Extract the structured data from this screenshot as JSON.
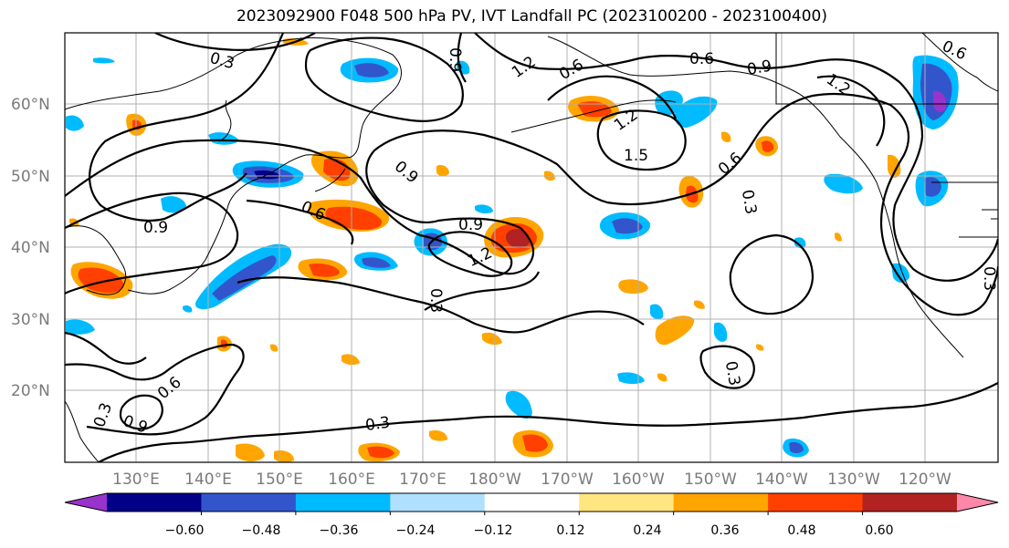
{
  "title": "2023092900 F048 500 hPa PV, IVT Landfall PC (2023100200 - 2023100400)",
  "lat_ticks": [
    "60°N",
    "50°N",
    "40°N",
    "30°N",
    "20°N"
  ],
  "lon_ticks": [
    "130°E",
    "140°E",
    "150°E",
    "160°E",
    "170°E",
    "180°W",
    "170°W",
    "160°W",
    "150°W",
    "140°W",
    "130°W",
    "120°W"
  ],
  "contour_labels": [
    "0.3",
    "0.6",
    "0.9",
    "1.2",
    "1.5",
    "0.9",
    "0.6",
    "0.3",
    "0.9",
    "1.2",
    "0.6",
    "0.9",
    "0.3",
    "0.6",
    "0.9",
    "0.3",
    "0.3",
    "0.3",
    "0.6",
    "0.3"
  ],
  "colorbar": {
    "labels": [
      "−0.60",
      "−0.48",
      "−0.36",
      "−0.24",
      "−0.12",
      "0.12",
      "0.24",
      "0.36",
      "0.48",
      "0.60"
    ],
    "colors": [
      "#9933cc",
      "#000088",
      "#3355cc",
      "#00bbff",
      "#b0e0ff",
      "#ffffff",
      "#ffe680",
      "#ffa500",
      "#ff4000",
      "#b22222",
      "#ff88aa"
    ]
  }
}
